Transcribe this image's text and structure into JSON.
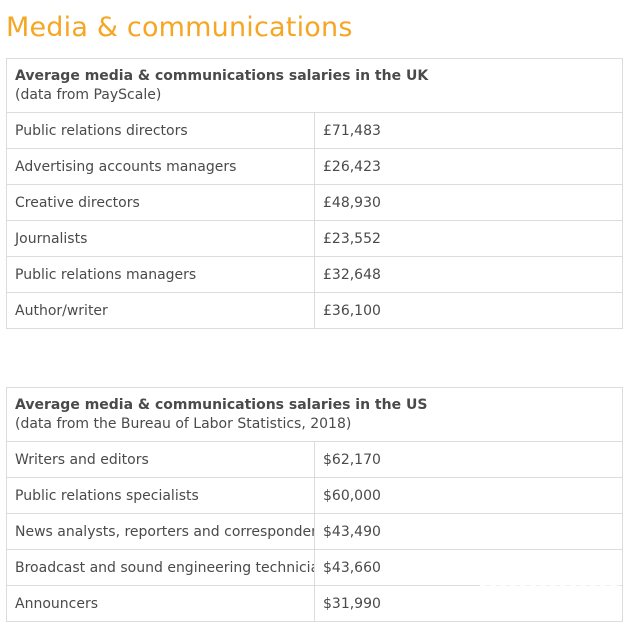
{
  "page": {
    "title": "Media & communications"
  },
  "uk_table": {
    "title": "Average media & communications salaries in the UK",
    "source": "(data from PayScale)",
    "rows": [
      {
        "role": "Public relations directors",
        "salary": "£71,483"
      },
      {
        "role": "Advertising accounts managers",
        "salary": "£26,423"
      },
      {
        "role": "Creative directors",
        "salary": "£48,930"
      },
      {
        "role": "Journalists",
        "salary": "£23,552"
      },
      {
        "role": "Public relations managers",
        "salary": "£32,648"
      },
      {
        "role": "Author/writer",
        "salary": "£36,100"
      }
    ]
  },
  "us_table": {
    "title": "Average media & communications salaries in the US",
    "source": "(data from the Bureau of Labor Statistics, 2018)",
    "rows": [
      {
        "role": "Writers and editors",
        "salary": "$62,170"
      },
      {
        "role": "Public relations specialists",
        "salary": "$60,000"
      },
      {
        "role": "News analysts, reporters and correspondents",
        "salary": "$43,490"
      },
      {
        "role": "Broadcast and sound engineering technicians",
        "salary": "$43,660"
      },
      {
        "role": "Announcers",
        "salary": "$31,990"
      }
    ]
  },
  "colors": {
    "title_accent": "#f5a623",
    "text": "#4a4a4a",
    "border": "#dcdcdc"
  }
}
